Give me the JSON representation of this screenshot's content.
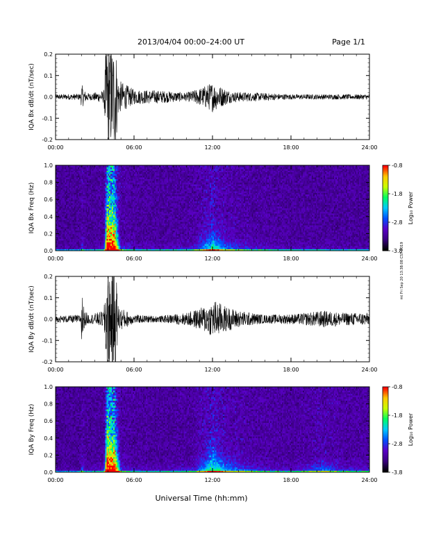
{
  "header": {
    "title": "2013/04/04   00:00–24:00 UT",
    "page": "Page 1/1"
  },
  "footer": {
    "xlabel": "Universal Time (hh:mm)",
    "side_note": "mt Fri Sep 20 13:38:08 CST 2019"
  },
  "colorbar": {
    "label": "Log₁₀ Power",
    "ticks": [
      "-0.8",
      "-1.8",
      "-2.8",
      "-3.8"
    ],
    "range": [
      -3.8,
      -0.8
    ],
    "colors": [
      "#000000",
      "#3a0080",
      "#5a00c8",
      "#0050ff",
      "#00c8ff",
      "#00ff60",
      "#c8ff00",
      "#ffc800",
      "#ff0000"
    ]
  },
  "chart_data": [
    {
      "type": "line",
      "name": "IQA Bx dB/dt",
      "ylabel": "IQA Bx dB/dt (nT/sec)",
      "xticks": [
        "00:00",
        "06:00",
        "12:00",
        "18:00",
        "24:00"
      ],
      "yticks": [
        "0.2",
        "0.1",
        "0.0",
        "-0.1",
        "-0.2"
      ],
      "xlim": [
        0,
        24
      ],
      "ylim": [
        -0.2,
        0.2
      ],
      "envelope": [
        {
          "x": 0.0,
          "a": 0.012
        },
        {
          "x": 1.9,
          "a": 0.015
        },
        {
          "x": 2.0,
          "a": 0.06
        },
        {
          "x": 2.2,
          "a": 0.03
        },
        {
          "x": 2.6,
          "a": 0.015
        },
        {
          "x": 3.7,
          "a": 0.03
        },
        {
          "x": 3.85,
          "a": 0.25
        },
        {
          "x": 4.6,
          "a": 0.25
        },
        {
          "x": 4.8,
          "a": 0.08
        },
        {
          "x": 6.0,
          "a": 0.035
        },
        {
          "x": 8.0,
          "a": 0.03
        },
        {
          "x": 10.0,
          "a": 0.02
        },
        {
          "x": 11.0,
          "a": 0.04
        },
        {
          "x": 12.0,
          "a": 0.07
        },
        {
          "x": 12.6,
          "a": 0.05
        },
        {
          "x": 13.5,
          "a": 0.025
        },
        {
          "x": 18.0,
          "a": 0.012
        },
        {
          "x": 24.0,
          "a": 0.012
        }
      ]
    },
    {
      "type": "heatmap",
      "name": "IQA Bx Freq",
      "ylabel": "IQA Bx Freq (Hz)",
      "xticks": [
        "00:00",
        "06:00",
        "12:00",
        "18:00",
        "24:00"
      ],
      "yticks": [
        "1.0",
        "0.8",
        "0.6",
        "0.4",
        "0.2",
        "0.0"
      ],
      "xlim": [
        0,
        24
      ],
      "ylim": [
        0,
        1.0
      ],
      "activity": [
        {
          "x": 0.0,
          "p": 0.05
        },
        {
          "x": 1.9,
          "p": 0.05
        },
        {
          "x": 2.0,
          "p": 0.3
        },
        {
          "x": 2.3,
          "p": 0.08
        },
        {
          "x": 3.7,
          "p": 0.15
        },
        {
          "x": 3.9,
          "p": 1.0
        },
        {
          "x": 4.6,
          "p": 0.9
        },
        {
          "x": 5.0,
          "p": 0.25
        },
        {
          "x": 6.0,
          "p": 0.15
        },
        {
          "x": 8.0,
          "p": 0.12
        },
        {
          "x": 10.5,
          "p": 0.2
        },
        {
          "x": 12.0,
          "p": 0.55
        },
        {
          "x": 13.0,
          "p": 0.35
        },
        {
          "x": 15.0,
          "p": 0.2
        },
        {
          "x": 18.0,
          "p": 0.12
        },
        {
          "x": 24.0,
          "p": 0.1
        }
      ]
    },
    {
      "type": "line",
      "name": "IQA By dB/dt",
      "ylabel": "IQA By dB/dt (nT/sec)",
      "xticks": [
        "00:00",
        "06:00",
        "12:00",
        "18:00",
        "24:00"
      ],
      "yticks": [
        "0.2",
        "0.1",
        "0.0",
        "-0.1",
        "-0.2"
      ],
      "xlim": [
        0,
        24
      ],
      "ylim": [
        -0.2,
        0.2
      ],
      "envelope": [
        {
          "x": 0.0,
          "a": 0.015
        },
        {
          "x": 1.9,
          "a": 0.02
        },
        {
          "x": 2.0,
          "a": 0.15
        },
        {
          "x": 2.2,
          "a": 0.04
        },
        {
          "x": 2.6,
          "a": 0.02
        },
        {
          "x": 3.7,
          "a": 0.04
        },
        {
          "x": 3.85,
          "a": 0.25
        },
        {
          "x": 4.6,
          "a": 0.25
        },
        {
          "x": 4.8,
          "a": 0.06
        },
        {
          "x": 6.0,
          "a": 0.02
        },
        {
          "x": 8.0,
          "a": 0.015
        },
        {
          "x": 10.0,
          "a": 0.03
        },
        {
          "x": 11.0,
          "a": 0.05
        },
        {
          "x": 12.2,
          "a": 0.09
        },
        {
          "x": 13.0,
          "a": 0.06
        },
        {
          "x": 14.0,
          "a": 0.04
        },
        {
          "x": 16.0,
          "a": 0.02
        },
        {
          "x": 18.5,
          "a": 0.025
        },
        {
          "x": 20.5,
          "a": 0.04
        },
        {
          "x": 22.0,
          "a": 0.03
        },
        {
          "x": 24.0,
          "a": 0.03
        }
      ]
    },
    {
      "type": "heatmap",
      "name": "IQA By Freq",
      "ylabel": "IQA By Freq (Hz)",
      "xticks": [
        "00:00",
        "06:00",
        "12:00",
        "18:00",
        "24:00"
      ],
      "yticks": [
        "1.0",
        "0.8",
        "0.6",
        "0.4",
        "0.2",
        "0.0"
      ],
      "xlim": [
        0,
        24
      ],
      "ylim": [
        0,
        1.0
      ],
      "activity": [
        {
          "x": 0.0,
          "p": 0.06
        },
        {
          "x": 1.9,
          "p": 0.06
        },
        {
          "x": 2.0,
          "p": 0.35
        },
        {
          "x": 2.3,
          "p": 0.08
        },
        {
          "x": 3.7,
          "p": 0.15
        },
        {
          "x": 3.9,
          "p": 1.0
        },
        {
          "x": 4.6,
          "p": 0.9
        },
        {
          "x": 5.0,
          "p": 0.25
        },
        {
          "x": 6.0,
          "p": 0.15
        },
        {
          "x": 8.0,
          "p": 0.12
        },
        {
          "x": 10.5,
          "p": 0.2
        },
        {
          "x": 12.0,
          "p": 0.6
        },
        {
          "x": 13.0,
          "p": 0.4
        },
        {
          "x": 15.0,
          "p": 0.25
        },
        {
          "x": 18.0,
          "p": 0.15
        },
        {
          "x": 20.5,
          "p": 0.35
        },
        {
          "x": 22.0,
          "p": 0.2
        },
        {
          "x": 24.0,
          "p": 0.2
        }
      ]
    }
  ]
}
